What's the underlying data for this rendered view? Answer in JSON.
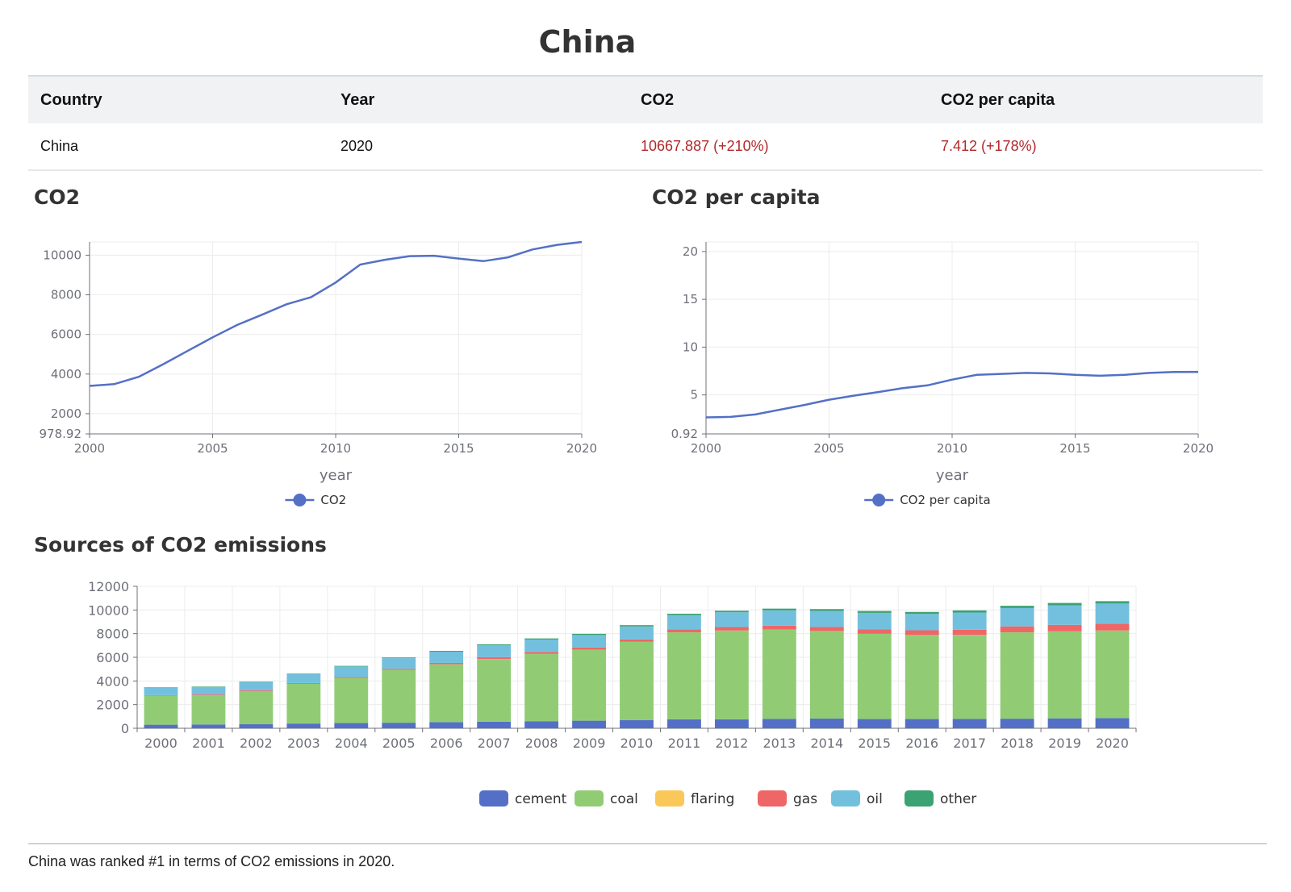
{
  "page": {
    "title": "China"
  },
  "table": {
    "headers": [
      "Country",
      "Year",
      "CO2",
      "CO2 per capita"
    ],
    "row": [
      "China",
      "2020",
      "10667.887 (+210%)",
      "7.412 (+178%)"
    ],
    "highlight_color": "#b2282b"
  },
  "sections": {
    "co2_title": "CO2",
    "per_capita_title": "CO2 per capita",
    "sources_title": "Sources of CO2 emissions"
  },
  "footer": {
    "text": "China was ranked #1 in terms of CO2 emissions in 2020."
  },
  "chart_data": [
    {
      "id": "co2",
      "type": "line",
      "xlabel": "year",
      "ylabel": "",
      "x": [
        2000,
        2001,
        2002,
        2003,
        2004,
        2005,
        2006,
        2007,
        2008,
        2009,
        2010,
        2011,
        2012,
        2013,
        2014,
        2015,
        2016,
        2017,
        2018,
        2019,
        2020
      ],
      "xticks": [
        2000,
        2005,
        2010,
        2015,
        2020
      ],
      "yticks": [
        "978.92",
        "2000",
        "4000",
        "6000",
        "8000",
        "10000"
      ],
      "ylim": [
        978.92,
        10667.887
      ],
      "grid": true,
      "legend_position": "bottom",
      "color": "#5470c6",
      "series": [
        {
          "name": "CO2",
          "values": [
            3400,
            3490,
            3860,
            4500,
            5180,
            5850,
            6480,
            6990,
            7520,
            7880,
            8620,
            9530,
            9770,
            9950,
            9970,
            9830,
            9700,
            9890,
            10290,
            10520,
            10668
          ]
        }
      ]
    },
    {
      "id": "per_capita",
      "type": "line",
      "xlabel": "year",
      "ylabel": "",
      "x": [
        2000,
        2001,
        2002,
        2003,
        2004,
        2005,
        2006,
        2007,
        2008,
        2009,
        2010,
        2011,
        2012,
        2013,
        2014,
        2015,
        2016,
        2017,
        2018,
        2019,
        2020
      ],
      "xticks": [
        2000,
        2005,
        2010,
        2015,
        2020
      ],
      "yticks": [
        "0.92",
        "5",
        "10",
        "15",
        "20"
      ],
      "ylim": [
        0.92,
        21.0
      ],
      "grid": true,
      "legend_position": "bottom",
      "color": "#5470c6",
      "series": [
        {
          "name": "CO2 per capita",
          "values": [
            2.65,
            2.7,
            2.95,
            3.45,
            3.95,
            4.5,
            4.92,
            5.3,
            5.7,
            6.0,
            6.6,
            7.1,
            7.2,
            7.3,
            7.25,
            7.1,
            7.0,
            7.1,
            7.3,
            7.4,
            7.41
          ]
        }
      ]
    },
    {
      "id": "sources",
      "type": "bar",
      "stacked": true,
      "xlabel": "",
      "ylabel": "",
      "categories": [
        "2000",
        "2001",
        "2002",
        "2003",
        "2004",
        "2005",
        "2006",
        "2007",
        "2008",
        "2009",
        "2010",
        "2011",
        "2012",
        "2013",
        "2014",
        "2015",
        "2016",
        "2017",
        "2018",
        "2019",
        "2020"
      ],
      "yticks": [
        0,
        2000,
        4000,
        6000,
        8000,
        10000,
        12000
      ],
      "ylim": [
        0,
        12000
      ],
      "grid": true,
      "legend_position": "bottom",
      "series": [
        {
          "name": "cement",
          "color": "#5470c6",
          "values": [
            300,
            320,
            340,
            400,
            440,
            470,
            520,
            560,
            580,
            640,
            700,
            760,
            760,
            800,
            820,
            780,
            780,
            790,
            810,
            840,
            860
          ]
        },
        {
          "name": "coal",
          "color": "#91cc75",
          "values": [
            2450,
            2480,
            2800,
            3350,
            3800,
            4450,
            4880,
            5300,
            5700,
            6000,
            6600,
            7350,
            7500,
            7550,
            7400,
            7200,
            7100,
            7100,
            7300,
            7350,
            7400
          ]
        },
        {
          "name": "flaring",
          "color": "#fac858",
          "values": [
            5,
            5,
            5,
            5,
            5,
            5,
            5,
            5,
            5,
            5,
            5,
            5,
            5,
            5,
            5,
            5,
            5,
            5,
            5,
            5,
            5
          ]
        },
        {
          "name": "gas",
          "color": "#ee6666",
          "values": [
            50,
            55,
            60,
            70,
            80,
            100,
            120,
            150,
            170,
            190,
            200,
            250,
            290,
            320,
            350,
            370,
            400,
            440,
            500,
            550,
            580
          ]
        },
        {
          "name": "oil",
          "color": "#73c0de",
          "values": [
            620,
            630,
            700,
            750,
            900,
            900,
            950,
            1000,
            1050,
            1050,
            1100,
            1200,
            1250,
            1300,
            1350,
            1400,
            1380,
            1450,
            1550,
            1650,
            1700
          ]
        },
        {
          "name": "other",
          "color": "#3ba272",
          "values": [
            40,
            40,
            40,
            45,
            50,
            60,
            70,
            80,
            90,
            100,
            110,
            120,
            130,
            140,
            150,
            160,
            170,
            180,
            190,
            200,
            200
          ]
        }
      ]
    }
  ]
}
